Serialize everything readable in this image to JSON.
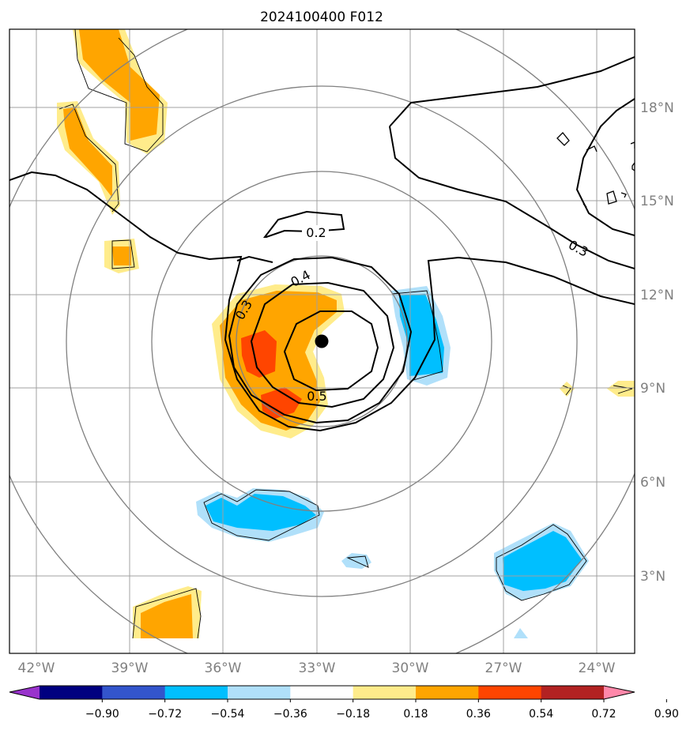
{
  "title": "2024100400 F012",
  "map": {
    "lon_ticks": [
      "42°W",
      "39°W",
      "36°W",
      "33°W",
      "30°W",
      "27°W",
      "24°W"
    ],
    "lat_ticks": [
      "18°N",
      "15°N",
      "12°N",
      "9°N",
      "6°N",
      "3°N"
    ],
    "gridline_color": "#a0a0a0",
    "range_ring_color": "#808080",
    "center_marker": "storm-center",
    "contour_labels": [
      "0.2",
      "0.4",
      "0.3",
      "0.5",
      "0.3"
    ]
  },
  "colorbar": {
    "tick_labels": [
      "−0.90",
      "−0.72",
      "−0.54",
      "−0.36",
      "−0.18",
      "0.18",
      "0.36",
      "0.54",
      "0.72",
      "0.90"
    ],
    "colors": [
      "#9933cc",
      "#000080",
      "#3355cc",
      "#00bfff",
      "#b0e0fa",
      "#ffffff",
      "#ffec8b",
      "#ffa500",
      "#ff4500",
      "#b22222",
      "#ff88aa"
    ]
  }
}
